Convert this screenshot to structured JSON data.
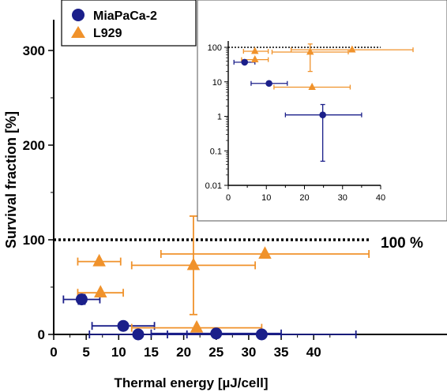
{
  "chart_data": [
    {
      "type": "scatter",
      "xlabel": "Thermal energy [µJ/cell]",
      "ylabel": "Survival fraction [%]",
      "xlim": [
        0,
        47
      ],
      "ylim": [
        0,
        350
      ],
      "xticks": [
        "0",
        "5",
        "10",
        "15",
        "20",
        "25",
        "30",
        "35",
        "40"
      ],
      "yticks": [
        "0",
        "100",
        "200",
        "300"
      ],
      "grid": false,
      "legend": "top-left",
      "reference_line": {
        "y": 100,
        "label": "100 %"
      },
      "series": [
        {
          "name": "MiaPaCa-2",
          "color": "#1b1f8a",
          "marker": "circle",
          "points": [
            {
              "x": 4.3,
              "y": 37,
              "xerr": 2.8,
              "yerr": 5
            },
            {
              "x": 10.7,
              "y": 9,
              "xerr": 4.8,
              "yerr": 0
            },
            {
              "x": 13.0,
              "y": 0,
              "xerr": 7.5,
              "yerr": 0
            },
            {
              "x": 25.0,
              "y": 1,
              "xerr": 10.0,
              "yerr": 0
            },
            {
              "x": 32.0,
              "y": 0,
              "xerr": 14.5,
              "yerr": 0
            }
          ]
        },
        {
          "name": "L929",
          "color": "#f0922b",
          "marker": "triangle",
          "points": [
            {
              "x": 7.0,
              "y": 77,
              "xerr": 3.3,
              "yerr": 0
            },
            {
              "x": 7.2,
              "y": 44,
              "xerr": 3.5,
              "yerr": 0
            },
            {
              "x": 21.5,
              "y": 73,
              "xerr": 9.5,
              "yerr": 52
            },
            {
              "x": 22.0,
              "y": 7,
              "xerr": 10.0,
              "yerr": 0
            },
            {
              "x": 32.5,
              "y": 85,
              "xerr": 16.0,
              "yerr": 0
            }
          ]
        }
      ]
    },
    {
      "type": "scatter",
      "xlim": [
        0,
        40
      ],
      "ylim": [
        0.01,
        150
      ],
      "y_scale": "log",
      "xticks": [
        "0",
        "10",
        "20",
        "30",
        "40"
      ],
      "yticks": [
        "0.01",
        "0.1",
        "1",
        "10",
        "100"
      ],
      "grid": false,
      "reference_line": {
        "y": 100
      },
      "series": [
        {
          "name": "MiaPaCa-2",
          "color": "#1b1f8a",
          "marker": "circle",
          "points": [
            {
              "x": 4.3,
              "y": 37,
              "xlo": 1.5,
              "xhi": 7.0
            },
            {
              "x": 10.7,
              "y": 9,
              "xlo": 6.0,
              "xhi": 15.5
            },
            {
              "x": 24.8,
              "y": 1.1,
              "xlo": 15.0,
              "xhi": 35.0,
              "ylo": 0.05,
              "yhi": 2.2
            }
          ]
        },
        {
          "name": "L929",
          "color": "#f0922b",
          "marker": "triangle",
          "points": [
            {
              "x": 7.0,
              "y": 77,
              "xlo": 4.0,
              "xhi": 10.5
            },
            {
              "x": 7.0,
              "y": 44,
              "xlo": 3.5,
              "xhi": 10.5
            },
            {
              "x": 21.5,
              "y": 73,
              "xlo": 11.5,
              "xhi": 31.5,
              "ylo": 20,
              "yhi": 125
            },
            {
              "x": 22.0,
              "y": 7,
              "xlo": 12.0,
              "xhi": 32.0
            },
            {
              "x": 32.5,
              "y": 85,
              "xlo": 16.5,
              "xhi": 48.5
            }
          ]
        }
      ]
    }
  ]
}
